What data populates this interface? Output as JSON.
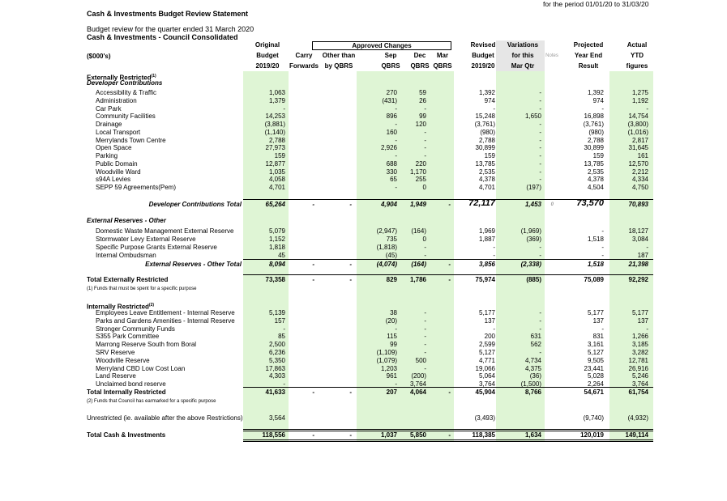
{
  "header": {
    "period": "for the period 01/01/20 to 31/03/20",
    "title": "Cash & Investments Budget Review Statement",
    "subtitle": "Budget review for the quarter ended 31 March 2020",
    "entity": "Cash & Investments - Council Consolidated"
  },
  "columns": {
    "approved_changes": "Approved Changes",
    "units": "($000's)",
    "heads": [
      [
        "Original",
        "Budget",
        "2019/20"
      ],
      [
        null,
        "Carry",
        "Forwards"
      ],
      [
        null,
        "Other than",
        "by QBRS"
      ],
      [
        null,
        "Sep",
        "QBRS"
      ],
      [
        null,
        "Dec",
        "QBRS"
      ],
      [
        null,
        "Mar",
        "QBRS"
      ],
      [
        "Revised",
        "Budget",
        "2019/20"
      ],
      [
        "Variations",
        "for this",
        "Mar Qtr"
      ],
      [
        null,
        "Notes",
        null
      ],
      [
        "Projected",
        "Year End",
        "Result"
      ],
      [
        "Actual",
        "YTD",
        "figures"
      ]
    ]
  },
  "rows": [
    {
      "label": "Externally Restricted",
      "sup": "(1)",
      "style": "section"
    },
    {
      "label": "Developer Contributions",
      "style": "subsection"
    },
    {
      "label": "Accessibility & Traffic",
      "style": "item",
      "cells": [
        "1,063",
        null,
        null,
        "270",
        "59",
        null,
        "1,392",
        "-",
        null,
        "1,392",
        "1,275"
      ]
    },
    {
      "label": "Administration",
      "style": "item",
      "cells": [
        "1,379",
        null,
        null,
        "(431)",
        "26",
        null,
        "974",
        "-",
        null,
        "974",
        "1,192"
      ]
    },
    {
      "label": "Car Park",
      "style": "item",
      "cells": [
        "-",
        null,
        null,
        "-",
        "-",
        null,
        "-",
        "-",
        null,
        "-",
        "-"
      ]
    },
    {
      "label": "Community Facilities",
      "style": "item",
      "cells": [
        "14,253",
        null,
        null,
        "896",
        "99",
        null,
        "15,248",
        "1,650",
        null,
        "16,898",
        "14,754"
      ]
    },
    {
      "label": "Drainage",
      "style": "item",
      "cells": [
        "(3,881)",
        null,
        null,
        "-",
        "120",
        null,
        "(3,761)",
        "-",
        null,
        "(3,761)",
        "(3,800)"
      ]
    },
    {
      "label": "Local Transport",
      "style": "item",
      "cells": [
        "(1,140)",
        null,
        null,
        "160",
        "-",
        null,
        "(980)",
        "-",
        null,
        "(980)",
        "(1,016)"
      ]
    },
    {
      "label": "Merrylands Town Centre",
      "style": "item",
      "cells": [
        "2,788",
        null,
        null,
        "-",
        "-",
        null,
        "2,788",
        "-",
        null,
        "2,788",
        "2,817"
      ]
    },
    {
      "label": "Open Space",
      "style": "item",
      "cells": [
        "27,973",
        null,
        null,
        "2,926",
        "-",
        null,
        "30,899",
        "-",
        null,
        "30,899",
        "31,645"
      ]
    },
    {
      "label": "Parking",
      "style": "item",
      "cells": [
        "159",
        null,
        null,
        "-",
        "-",
        null,
        "159",
        "-",
        null,
        "159",
        "161"
      ]
    },
    {
      "label": "Public Domain",
      "style": "item",
      "cells": [
        "12,877",
        null,
        null,
        "688",
        "220",
        null,
        "13,785",
        "-",
        null,
        "13,785",
        "12,570"
      ]
    },
    {
      "label": "Woodville Ward",
      "style": "item",
      "cells": [
        "1,035",
        null,
        null,
        "330",
        "1,170",
        null,
        "2,535",
        "-",
        null,
        "2,535",
        "2,212"
      ]
    },
    {
      "label": "s94A Levies",
      "style": "item",
      "cells": [
        "4,058",
        null,
        null,
        "65",
        "255",
        null,
        "4,378",
        "-",
        null,
        "4,378",
        "4,334"
      ]
    },
    {
      "label": "SEPP 59 Agreements(Pem)",
      "style": "item",
      "cells": [
        "4,701",
        null,
        null,
        "-",
        "0",
        null,
        "4,701",
        "(197)",
        null,
        "4,504",
        "4,750"
      ]
    },
    {
      "label": "Developer Contributions Total",
      "style": "subtotal",
      "cells": [
        "65,264",
        "-",
        "-",
        "4,904",
        "1,949",
        "-",
        "72,117",
        "1,453",
        "0",
        "73,570",
        "70,893"
      ]
    },
    {
      "label": "External Reserves - Other",
      "style": "subsection"
    },
    {
      "label": "Domestic Waste Management External Reserve",
      "style": "item",
      "cells": [
        "5,079",
        null,
        null,
        "(2,947)",
        "(164)",
        null,
        "1,969",
        "(1,969)",
        null,
        "-",
        "18,127"
      ]
    },
    {
      "label": "Stormwater Levy External Reserve",
      "style": "item",
      "cells": [
        "1,152",
        null,
        null,
        "735",
        "0",
        null,
        "1,887",
        "(369)",
        null,
        "1,518",
        "3,084"
      ]
    },
    {
      "label": "Specific Purpose Grants External Reserve",
      "style": "item",
      "cells": [
        "1,818",
        null,
        null,
        "(1,818)",
        "-",
        null,
        "-",
        "-",
        null,
        "-",
        "-"
      ]
    },
    {
      "label": "Internal Ombudsman",
      "style": "item",
      "cells": [
        "45",
        null,
        null,
        "(45)",
        "-",
        null,
        "-",
        "-",
        null,
        "-",
        "187"
      ]
    },
    {
      "label": "External Reserves - Other Total",
      "style": "subtotal",
      "cells": [
        "8,094",
        "-",
        "-",
        "(4,074)",
        "(164)",
        "-",
        "3,856",
        "(2,338)",
        null,
        "1,518",
        "21,398"
      ]
    },
    {
      "label": "Total Externally Restricted",
      "style": "total",
      "cells": [
        "73,358",
        "-",
        "-",
        "829",
        "1,786",
        "-",
        "75,974",
        "(885)",
        null,
        "75,089",
        "92,292"
      ]
    },
    {
      "label": "(1) Funds that must be spent for a specific purpose",
      "style": "note"
    },
    {
      "label": "Internally Restricted",
      "sup": "(2)",
      "style": "section"
    },
    {
      "label": "Employees Leave Entitlement - Internal Reserve",
      "style": "item",
      "cells": [
        "5,139",
        null,
        null,
        "38",
        "-",
        null,
        "5,177",
        "-",
        null,
        "5,177",
        "5,177"
      ]
    },
    {
      "label": "Parks and Gardens Amenities - Internal Reserve",
      "style": "item",
      "cells": [
        "157",
        null,
        null,
        "(20)",
        "-",
        null,
        "137",
        "-",
        null,
        "137",
        "137"
      ]
    },
    {
      "label": "Stronger Community Funds",
      "style": "item",
      "cells": [
        "-",
        null,
        null,
        "-",
        "-",
        null,
        "-",
        "-",
        null,
        "-",
        "-"
      ]
    },
    {
      "label": "S355 Park Committee",
      "style": "item",
      "cells": [
        "85",
        null,
        null,
        "115",
        "-",
        null,
        "200",
        "631",
        null,
        "831",
        "1,266"
      ]
    },
    {
      "label": "Marrong Reserve South from Boral",
      "style": "item",
      "cells": [
        "2,500",
        null,
        null,
        "99",
        "-",
        null,
        "2,599",
        "562",
        null,
        "3,161",
        "3,185"
      ]
    },
    {
      "label": "SRV Reserve",
      "style": "item",
      "cells": [
        "6,236",
        null,
        null,
        "(1,109)",
        "-",
        null,
        "5,127",
        "-",
        null,
        "5,127",
        "3,282"
      ]
    },
    {
      "label": "Woodville Reserve",
      "style": "item",
      "cells": [
        "5,350",
        null,
        null,
        "(1,079)",
        "500",
        null,
        "4,771",
        "4,734",
        null,
        "9,505",
        "12,781"
      ]
    },
    {
      "label": "Merryland CBD Low Cost Loan",
      "style": "item",
      "cells": [
        "17,863",
        null,
        null,
        "1,203",
        "-",
        null,
        "19,066",
        "4,375",
        null,
        "23,441",
        "26,916"
      ]
    },
    {
      "label": "Land Reserve",
      "style": "item",
      "cells": [
        "4,303",
        null,
        null,
        "961",
        "(200)",
        null,
        "5,064",
        "(36)",
        null,
        "5,028",
        "5,246"
      ]
    },
    {
      "label": "Unclaimed bond reserve",
      "style": "item",
      "cells": [
        "-",
        null,
        null,
        "-",
        "3,764",
        null,
        "3,764",
        "(1,500)",
        null,
        "2,264",
        "3,764"
      ]
    },
    {
      "label": "Total Internally Restricted",
      "style": "total",
      "cells": [
        "41,633",
        "-",
        "-",
        "207",
        "4,064",
        "-",
        "45,904",
        "8,766",
        null,
        "54,671",
        "61,754"
      ]
    },
    {
      "label": "(2) Funds that Council has earmarked for a specific purpose",
      "style": "note"
    },
    {
      "label": "Unrestricted (ie. available after the above Restrictions)",
      "style": "plain",
      "cells": [
        "3,564",
        null,
        null,
        null,
        null,
        null,
        "(3,493)",
        null,
        null,
        "(9,740)",
        "(4,932)"
      ]
    },
    {
      "label": "Total Cash & Investments",
      "style": "grand",
      "cells": [
        "118,556",
        "-",
        "-",
        "1,037",
        "5,850",
        "-",
        "118,385",
        "1,634",
        null,
        "120,019",
        "149,114"
      ]
    }
  ]
}
